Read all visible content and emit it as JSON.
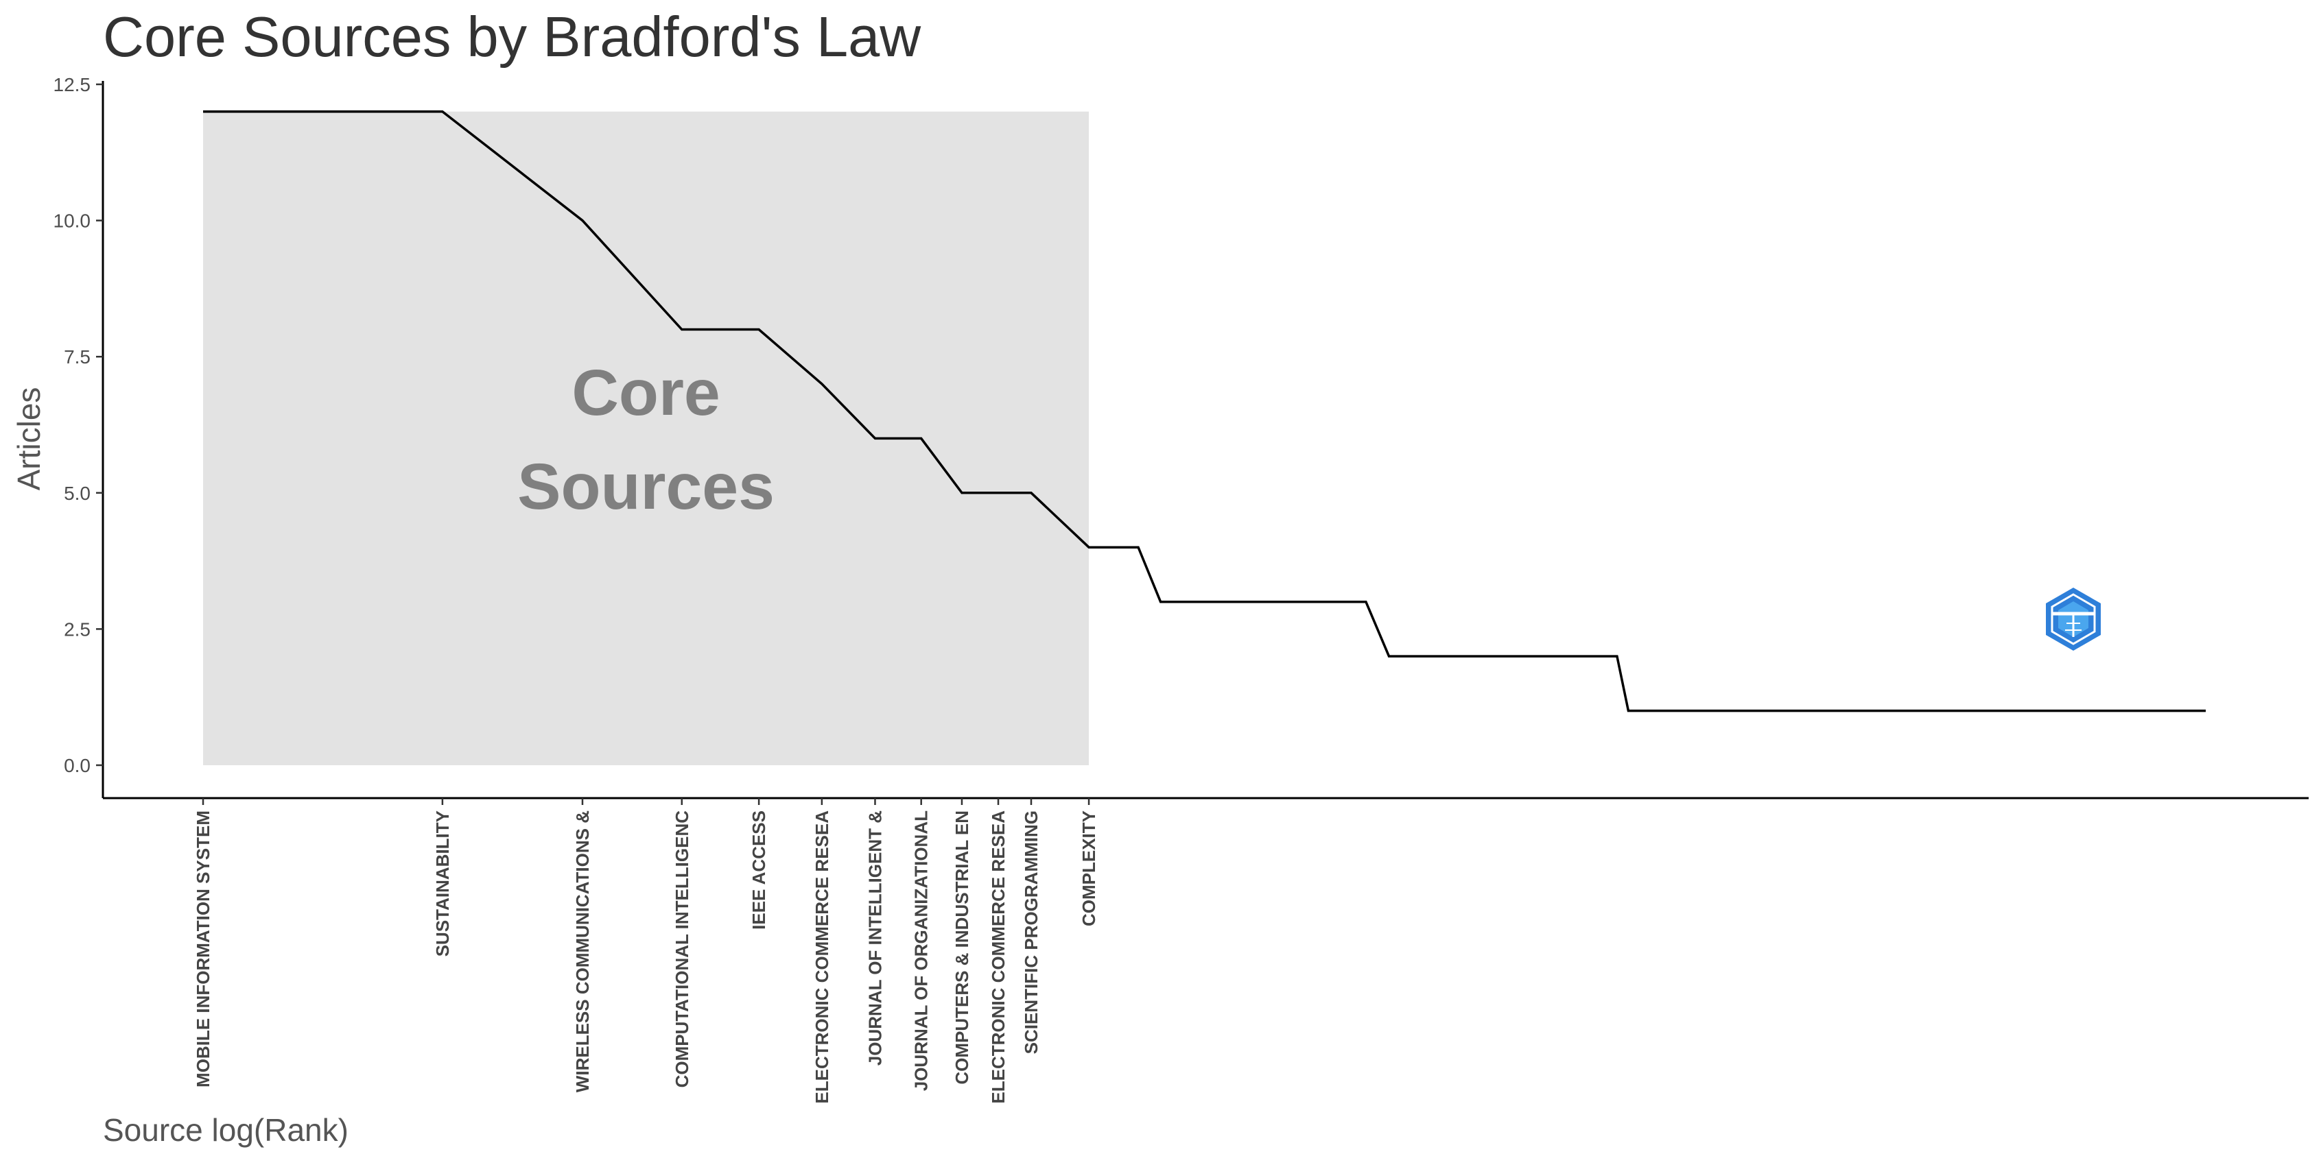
{
  "chart_data": {
    "type": "line",
    "title": "Core Sources by Bradford's Law",
    "xlabel": "Source log(Rank)",
    "ylabel": "Articles",
    "ylim": [
      0,
      12.5
    ],
    "yticks": [
      "0.0",
      "2.5",
      "5.0",
      "7.5",
      "10.0",
      "12.5"
    ],
    "x_scale": "log(rank)",
    "grid": false,
    "core_zone": {
      "label_line1": "Core",
      "label_line2": "Sources",
      "rank_from": 1,
      "rank_to": 13,
      "articles_top": 12,
      "fill": "#e3e3e3",
      "label_color": "#808080"
    },
    "line_color": "#000000",
    "sources": [
      {
        "label": "MOBILE INFORMATION SYSTEM",
        "rank": 1,
        "articles": 12
      },
      {
        "label": "SUSTAINABILITY",
        "rank": 2,
        "articles": 12
      },
      {
        "label": "WIRELESS COMMUNICATIONS &",
        "rank": 3,
        "articles": 10
      },
      {
        "label": "COMPUTATIONAL INTELLIGENC",
        "rank": 4,
        "articles": 8
      },
      {
        "label": "IEEE ACCESS",
        "rank": 5,
        "articles": 8
      },
      {
        "label": "ELECTRONIC COMMERCE RESEA",
        "rank": 6,
        "articles": 7
      },
      {
        "label": "JOURNAL OF INTELLIGENT &",
        "rank": 7,
        "articles": 6
      },
      {
        "label": "JOURNAL OF ORGANIZATIONAL",
        "rank": 8,
        "articles": 6
      },
      {
        "label": "COMPUTERS & INDUSTRIAL EN",
        "rank": 9,
        "articles": 5
      },
      {
        "label": "ELECTRONIC COMMERCE RESEA",
        "rank": 10,
        "articles": 5
      },
      {
        "label": "SCIENTIFIC PROGRAMMING",
        "rank": 11,
        "articles": 5
      },
      {
        "label": "COMPLEXITY",
        "rank": 13,
        "articles": 4
      }
    ],
    "tail": [
      {
        "rank": 13,
        "articles": 4
      },
      {
        "rank": 15,
        "articles": 4
      },
      {
        "rank": 16,
        "articles": 3
      },
      {
        "rank": 29,
        "articles": 3
      },
      {
        "rank": 31,
        "articles": 2
      },
      {
        "rank": 60,
        "articles": 2
      },
      {
        "rank": 62,
        "articles": 1
      },
      {
        "rank": 330,
        "articles": 1
      }
    ]
  },
  "watermark": {
    "icon": "bibliometrix-logo-icon",
    "color": "#2e7fd9"
  }
}
